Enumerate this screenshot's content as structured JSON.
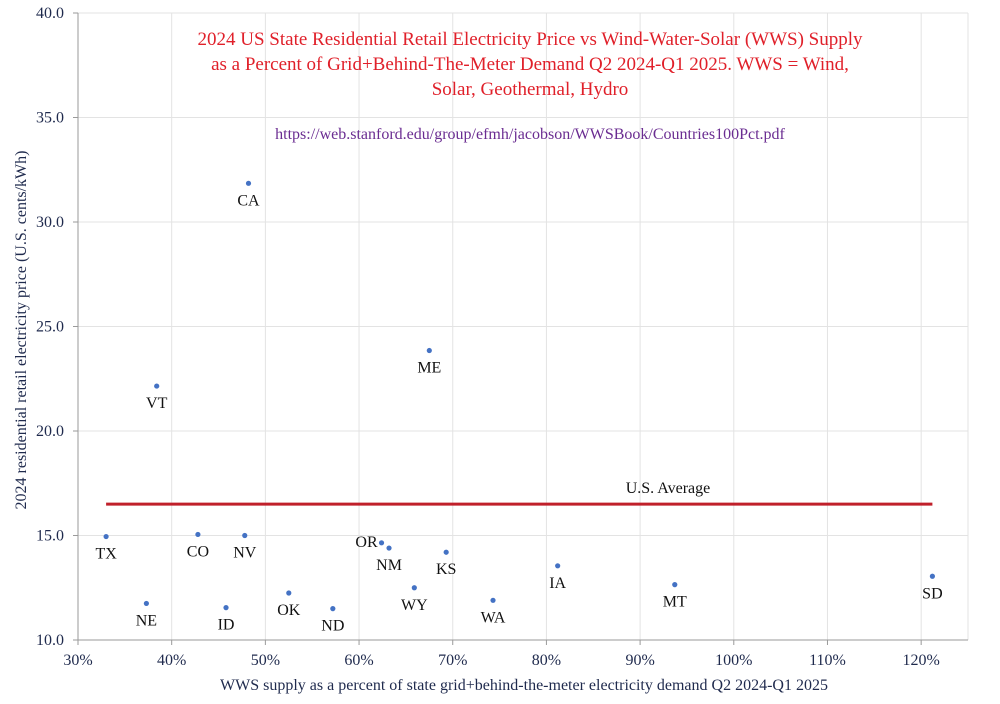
{
  "chart_data": {
    "type": "scatter",
    "title_lines": [
      "2024 US State Residential Retail Electricity Price vs Wind-Water-Solar (WWS) Supply",
      "as a Percent of Grid+Behind-The-Meter Demand Q2 2024-Q1 2025. WWS = Wind,",
      "Solar, Geothermal, Hydro"
    ],
    "source_url": "https://web.stanford.edu/group/efmh/jacobson/WWSBook/Countries100Pct.pdf",
    "xlabel": "WWS supply as a percent of state grid+behind-the-meter electricity demand Q2 2024-Q1 2025",
    "ylabel": "2024 residential retail electricity price (U.S. cents/kWh)",
    "xlim": [
      30,
      125
    ],
    "ylim": [
      10,
      40
    ],
    "x_ticks": [
      30,
      40,
      50,
      60,
      70,
      80,
      90,
      100,
      110,
      120
    ],
    "x_tick_labels": [
      "30%",
      "40%",
      "50%",
      "60%",
      "70%",
      "80%",
      "90%",
      "100%",
      "110%",
      "120%"
    ],
    "y_ticks": [
      10,
      15,
      20,
      25,
      30,
      35,
      40
    ],
    "y_tick_labels": [
      "10.0",
      "15.0",
      "20.0",
      "25.0",
      "30.0",
      "35.0",
      "40.0"
    ],
    "point_color": "#4472c4",
    "average_line": {
      "label": "U.S. Average",
      "value": 16.5,
      "x_start": 33,
      "x_end": 121.2,
      "color": "#c0202a"
    },
    "points": [
      {
        "state": "TX",
        "x": 33,
        "y": 14.95
      },
      {
        "state": "NE",
        "x": 37.3,
        "y": 11.75
      },
      {
        "state": "VT",
        "x": 38.4,
        "y": 22.15
      },
      {
        "state": "CO",
        "x": 42.8,
        "y": 15.05
      },
      {
        "state": "ID",
        "x": 45.8,
        "y": 11.55
      },
      {
        "state": "NV",
        "x": 47.8,
        "y": 15.0
      },
      {
        "state": "CA",
        "x": 48.2,
        "y": 31.85
      },
      {
        "state": "OK",
        "x": 52.5,
        "y": 12.25
      },
      {
        "state": "ND",
        "x": 57.2,
        "y": 11.5
      },
      {
        "state": "OR",
        "x": 62.4,
        "y": 14.65
      },
      {
        "state": "NM",
        "x": 63.2,
        "y": 14.4
      },
      {
        "state": "WY",
        "x": 65.9,
        "y": 12.5
      },
      {
        "state": "ME",
        "x": 67.5,
        "y": 23.85
      },
      {
        "state": "KS",
        "x": 69.3,
        "y": 14.2
      },
      {
        "state": "WA",
        "x": 74.3,
        "y": 11.9
      },
      {
        "state": "IA",
        "x": 81.2,
        "y": 13.55
      },
      {
        "state": "MT",
        "x": 93.7,
        "y": 12.65
      },
      {
        "state": "SD",
        "x": 121.2,
        "y": 13.05
      }
    ]
  }
}
